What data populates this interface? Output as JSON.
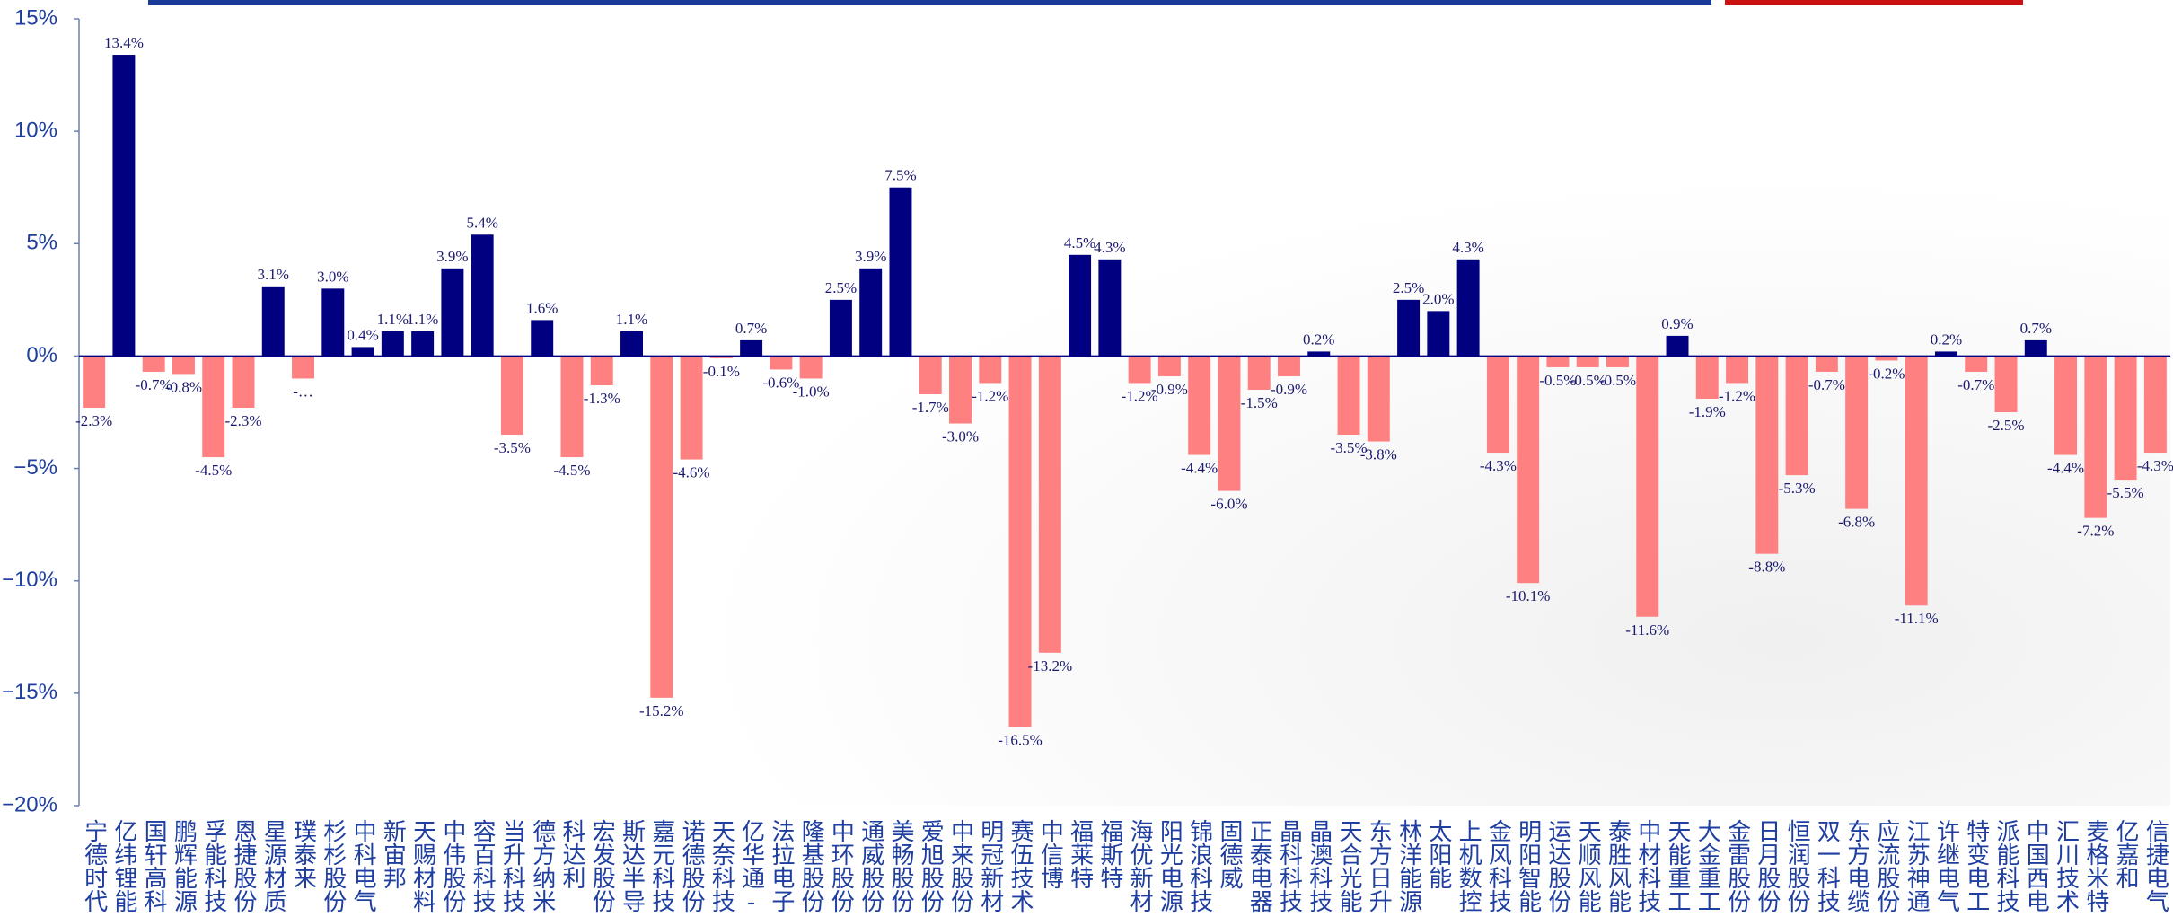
{
  "chart_data": {
    "type": "bar",
    "categories": [
      "宁德时代",
      "亿纬锂能",
      "国轩高科",
      "鹏辉能源",
      "孚能科技",
      "恩捷股份",
      "星源材质",
      "璞泰来",
      "杉杉股份",
      "中科电气",
      "新宙邦",
      "天赐材料",
      "中伟股份",
      "容百科技",
      "当升科技",
      "德方纳米",
      "科达利",
      "宏发股份",
      "斯达半导",
      "嘉元科技",
      "诺德股份",
      "天奈科技",
      "亿华通-U",
      "法拉电子",
      "隆基股份",
      "中环股份",
      "通威股份",
      "美畅股份",
      "爱旭股份",
      "中来股份",
      "明冠新材",
      "赛伍技术",
      "中信博",
      "福莱特",
      "福斯特",
      "海优新材",
      "阳光电源",
      "锦浪科技",
      "固德威",
      "正泰电器",
      "晶科科技",
      "晶澳科技",
      "天合光能",
      "东方日升",
      "林洋能源",
      "太阳能",
      "上机数控",
      "金风科技",
      "明阳智能",
      "运达股份",
      "天顺风能",
      "泰胜风能",
      "中材科技",
      "天能重工",
      "大金重工",
      "金雷股份",
      "日月股份",
      "恒润股份",
      "双一科技",
      "东方电缆",
      "应流股份",
      "江苏神通",
      "许继电气",
      "特变电工",
      "派能科技",
      "中国西电",
      "汇川技术",
      "麦格米特",
      "亿嘉和",
      "信捷电气"
    ],
    "values": [
      -2.3,
      13.4,
      -0.7,
      -0.8,
      -4.5,
      -2.3,
      3.1,
      -1.0,
      3.0,
      0.4,
      1.1,
      1.1,
      3.9,
      5.4,
      -3.5,
      1.6,
      -4.5,
      -1.3,
      1.1,
      -15.2,
      -4.6,
      -0.1,
      0.7,
      -0.6,
      -1.0,
      2.5,
      3.9,
      7.5,
      -1.7,
      -3.0,
      -1.2,
      -16.5,
      -13.2,
      4.5,
      4.3,
      -1.2,
      -0.9,
      -4.4,
      -6.0,
      -1.5,
      -0.9,
      0.2,
      -3.5,
      -3.8,
      2.5,
      2.0,
      4.3,
      -4.3,
      -10.1,
      -0.5,
      -0.5,
      -0.5,
      -11.6,
      0.9,
      -1.9,
      -1.2,
      -8.8,
      -5.3,
      -0.7,
      -6.8,
      -0.2,
      -11.1,
      0.2,
      -0.7,
      -2.5,
      0.7,
      -4.4,
      -7.2,
      -5.5,
      -4.3
    ],
    "value_labels": [
      "-2.3%",
      "13.4%",
      "-0.7%",
      "-0.8%",
      "-4.5%",
      "-2.3%",
      "3.1%",
      "-…",
      "3.0%",
      "0.4%",
      "1.1%",
      "1.1%",
      "3.9%",
      "5.4%",
      "-3.5%",
      "1.6%",
      "-4.5%",
      "-1.3%",
      "1.1%",
      "-15.2%",
      "-4.6%",
      "-0.1%",
      "0.7%",
      "-0.6%",
      "-1.0%",
      "2.5%",
      "3.9%",
      "7.5%",
      "-1.7%",
      "-3.0%",
      "-1.2%",
      "-16.5%",
      "-13.2%",
      "4.5%",
      "4.3%",
      "-1.2%",
      "-0.9%",
      "-4.4%",
      "-6.0%",
      "-1.5%",
      "-0.9%",
      "0.2%",
      "-3.5%",
      "-3.8%",
      "2.5%",
      "2.0%",
      "4.3%",
      "-4.3%",
      "-10.1%",
      "-0.5%",
      "-0.5%",
      "-0.5%",
      "-11.6%",
      "0.9%",
      "-1.9%",
      "-1.2%",
      "-8.8%",
      "-5.3%",
      "-0.7%",
      "-6.8%",
      "-0.2%",
      "-11.1%",
      "0.2%",
      "-0.7%",
      "-2.5%",
      "0.7%",
      "-4.4%",
      "-7.2%",
      "-5.5%",
      "-4.3%"
    ],
    "positive_color": "#000080",
    "negative_color": "#ff8080",
    "ylim": [
      -20,
      15
    ],
    "yticks": [
      {
        "value": -20,
        "label": "−20%"
      },
      {
        "value": -15,
        "label": "−15%"
      },
      {
        "value": -10,
        "label": "−10%"
      },
      {
        "value": -5,
        "label": "−5%"
      },
      {
        "value": 0,
        "label": "0%"
      },
      {
        "value": 5,
        "label": "5%"
      },
      {
        "value": 10,
        "label": "10%"
      },
      {
        "value": 15,
        "label": "15%"
      }
    ]
  }
}
